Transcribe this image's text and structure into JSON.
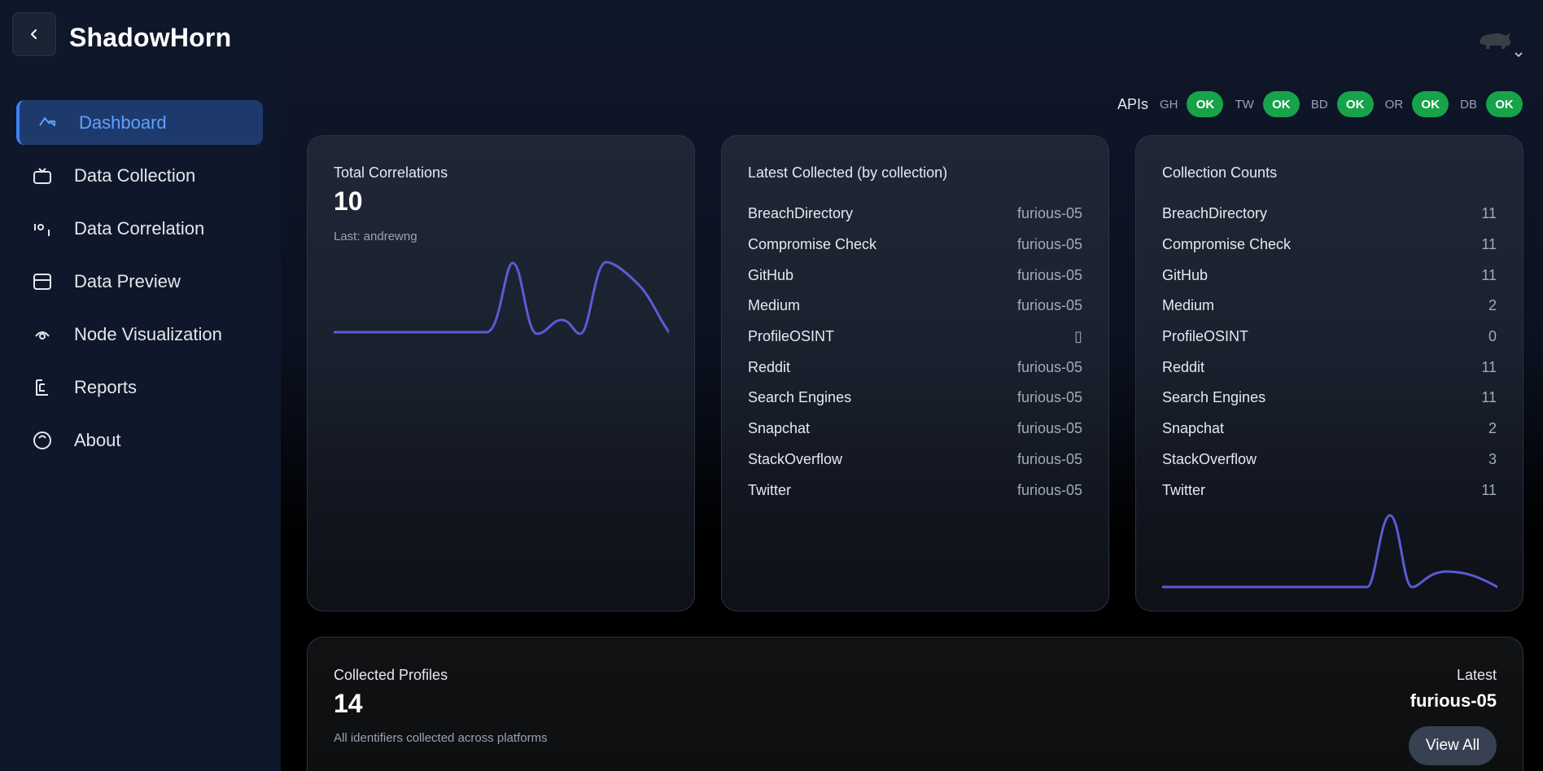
{
  "app": {
    "brand": "ShadowHorn"
  },
  "sidebar": {
    "items": [
      {
        "label": "Dashboard",
        "icon": "dashboard-icon",
        "active": true
      },
      {
        "label": "Data Collection",
        "icon": "tv-icon"
      },
      {
        "label": "Data Correlation",
        "icon": "correlation-icon"
      },
      {
        "label": "Data Preview",
        "icon": "preview-icon"
      },
      {
        "label": "Node Visualization",
        "icon": "eye-icon"
      },
      {
        "label": "Reports",
        "icon": "report-icon"
      },
      {
        "label": "About",
        "icon": "info-icon"
      }
    ]
  },
  "apis": {
    "title": "APIs",
    "items": [
      {
        "key": "GH",
        "status": "OK"
      },
      {
        "key": "TW",
        "status": "OK"
      },
      {
        "key": "BD",
        "status": "OK"
      },
      {
        "key": "OR",
        "status": "OK"
      },
      {
        "key": "DB",
        "status": "OK"
      }
    ],
    "ok_color": "#16a34a"
  },
  "total_correlations": {
    "label": "Total Correlations",
    "value": "10",
    "sub": "Last: andrewng"
  },
  "latest_collected": {
    "label": "Latest Collected (by collection)",
    "rows": [
      {
        "name": "BreachDirectory",
        "value": "furious-05"
      },
      {
        "name": "Compromise Check",
        "value": "furious-05"
      },
      {
        "name": "GitHub",
        "value": "furious-05"
      },
      {
        "name": "Medium",
        "value": "furious-05"
      },
      {
        "name": "ProfileOSINT",
        "value": "▯"
      },
      {
        "name": "Reddit",
        "value": "furious-05"
      },
      {
        "name": "Search Engines",
        "value": "furious-05"
      },
      {
        "name": "Snapchat",
        "value": "furious-05"
      },
      {
        "name": "StackOverflow",
        "value": "furious-05"
      },
      {
        "name": "Twitter",
        "value": "furious-05"
      }
    ]
  },
  "collection_counts": {
    "label": "Collection Counts",
    "rows": [
      {
        "name": "BreachDirectory",
        "value": "11"
      },
      {
        "name": "Compromise Check",
        "value": "11"
      },
      {
        "name": "GitHub",
        "value": "11"
      },
      {
        "name": "Medium",
        "value": "2"
      },
      {
        "name": "ProfileOSINT",
        "value": "0"
      },
      {
        "name": "Reddit",
        "value": "11"
      },
      {
        "name": "Search Engines",
        "value": "11"
      },
      {
        "name": "Snapchat",
        "value": "2"
      },
      {
        "name": "StackOverflow",
        "value": "3"
      },
      {
        "name": "Twitter",
        "value": "11"
      }
    ]
  },
  "collected_profiles": {
    "label": "Collected Profiles",
    "value": "14",
    "sub": "All identifiers collected across platforms",
    "latest_label": "Latest",
    "latest_value": "furious-05",
    "view_all": "View All"
  },
  "colors": {
    "accent": "#3b82f6",
    "sparkline": "#5b5bd6"
  }
}
